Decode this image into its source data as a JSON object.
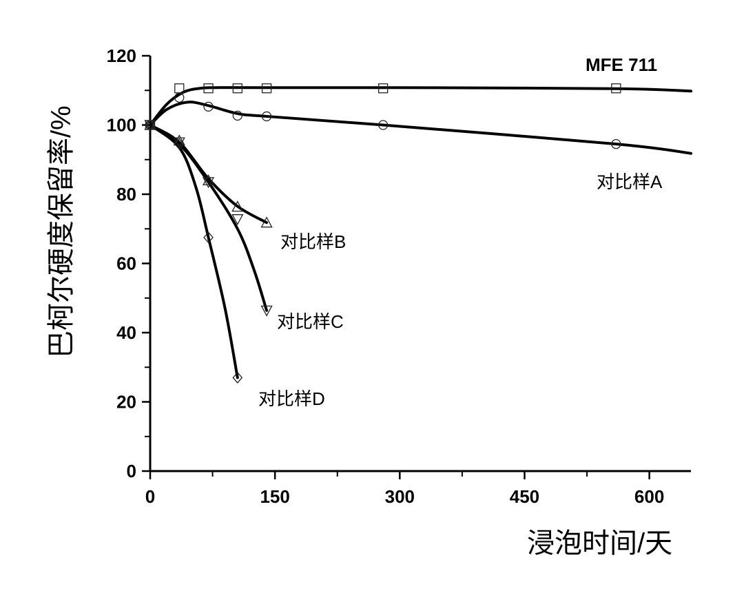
{
  "chart_data": {
    "type": "line",
    "title": "",
    "xlabel": "浸泡时间/天",
    "ylabel": "巴柯尔硬度保留率/%",
    "xlim": [
      0,
      650
    ],
    "ylim": [
      0,
      120
    ],
    "xticks": [
      0,
      150,
      300,
      450,
      600
    ],
    "yticks": [
      0,
      20,
      40,
      60,
      80,
      100,
      120
    ],
    "grid": false,
    "series": [
      {
        "name": "MFE 711",
        "marker": "square",
        "x": [
          0,
          35,
          70,
          105,
          140,
          280,
          560
        ],
        "y": [
          100,
          110.6,
          110.6,
          110.6,
          110.6,
          110.6,
          110.6
        ],
        "fit_x": [
          0,
          20,
          40,
          60,
          80,
          140,
          300,
          560,
          650
        ],
        "fit_y": [
          100,
          106,
          109.5,
          110.6,
          110.8,
          110.8,
          110.8,
          110.5,
          109.8
        ]
      },
      {
        "name": "对比样A",
        "marker": "circle",
        "x": [
          0,
          35,
          70,
          105,
          140,
          280,
          560
        ],
        "y": [
          100,
          107.9,
          105.3,
          102.7,
          102.5,
          100,
          94.5
        ],
        "fit_x": [
          0,
          20,
          45,
          70,
          105,
          140,
          280,
          560,
          650
        ],
        "fit_y": [
          100,
          104.5,
          106.6,
          105.6,
          103.3,
          102.5,
          100,
          94.5,
          91.8
        ]
      },
      {
        "name": "对比样B",
        "marker": "triangle-up",
        "x": [
          0,
          35,
          70,
          105,
          140
        ],
        "y": [
          100,
          95.5,
          84,
          76.4,
          71.8
        ],
        "fit_x": [
          0,
          35,
          70,
          105,
          140
        ],
        "fit_y": [
          100,
          95,
          84.5,
          76.5,
          71.8
        ]
      },
      {
        "name": "对比样C",
        "marker": "triangle-down",
        "x": [
          0,
          35,
          70,
          105,
          140
        ],
        "y": [
          100,
          95,
          83.5,
          72.8,
          46.4
        ],
        "fit_x": [
          0,
          35,
          70,
          105,
          125,
          140
        ],
        "fit_y": [
          100,
          94.5,
          83.5,
          70,
          58,
          46.4
        ]
      },
      {
        "name": "对比样D",
        "marker": "diamond",
        "x": [
          0,
          35,
          70,
          105
        ],
        "y": [
          100,
          94.5,
          67.5,
          27
        ],
        "fit_x": [
          0,
          35,
          55,
          70,
          90,
          105
        ],
        "fit_y": [
          100,
          93.5,
          82,
          67.5,
          47,
          27
        ]
      }
    ],
    "annotations": [
      "MFE 711",
      "对比样A",
      "对比样B",
      "对比样C",
      "对比样D"
    ]
  }
}
